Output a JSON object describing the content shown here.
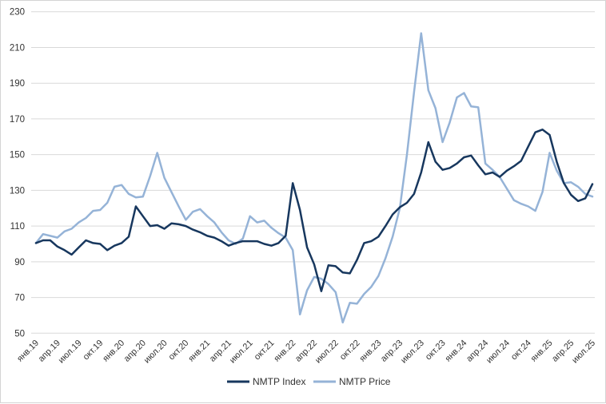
{
  "chart_data": {
    "type": "line",
    "title": "",
    "xlabel": "",
    "ylabel": "",
    "ylim": [
      50,
      230
    ],
    "y_ticks": [
      50,
      70,
      90,
      110,
      130,
      150,
      170,
      190,
      210,
      230
    ],
    "grid": "horizontal",
    "legend_position": "bottom-center",
    "x_label_rotation_deg": -45,
    "x_tick_labels_quarterly": [
      "янв.19",
      "апр.19",
      "июл.19",
      "окт.19",
      "янв.20",
      "апр.20",
      "июл.20",
      "окт.20",
      "янв.21",
      "апр.21",
      "июл.21",
      "окт.21",
      "янв.22",
      "апр.22",
      "июл.22",
      "окт.22",
      "янв.23",
      "апр.23",
      "июл.23",
      "окт.23",
      "янв.24",
      "апр.24",
      "июл.24",
      "окт.24",
      "янв.25",
      "апр.25",
      "июл.25"
    ],
    "x_label_every_n_points": 3,
    "x_months_start": "янв.19",
    "x_months_end": "июл.25",
    "series": [
      {
        "name": "NMTP Index",
        "color": "#17375E",
        "values": [
          100.5,
          102,
          102,
          98.5,
          96.5,
          94,
          98,
          102,
          100.5,
          100,
          96.5,
          99,
          100.5,
          104,
          121,
          115.5,
          110,
          110.5,
          108.5,
          111.5,
          111,
          110,
          108,
          106.5,
          104.5,
          103.5,
          101.5,
          99,
          100.5,
          101.5,
          101.5,
          101.5,
          100,
          99,
          100.5,
          104.5,
          134,
          119,
          98,
          88.5,
          73.5,
          88,
          87.5,
          84,
          83.5,
          91,
          100.5,
          101.5,
          104,
          110,
          116.5,
          120.5,
          123,
          128,
          140,
          157,
          146,
          141.5,
          142.5,
          145,
          148.5,
          149.5,
          144,
          139,
          140,
          137.5,
          141,
          143.5,
          146.5,
          154.5,
          162.5,
          164,
          161,
          146,
          134,
          127.5,
          124,
          125.5,
          133.5
        ]
      },
      {
        "name": "NMTP Price",
        "color": "#95B3D7",
        "values": [
          100.5,
          105.5,
          104.5,
          103.5,
          107,
          108.5,
          112,
          114.5,
          118.5,
          119,
          123,
          132,
          133,
          128,
          126,
          126.5,
          138,
          151,
          137,
          129,
          121,
          113.5,
          118,
          119.5,
          115.5,
          112,
          106.5,
          102,
          100,
          103,
          115.5,
          112,
          113,
          109,
          106,
          103.5,
          96.5,
          60.5,
          74,
          81.5,
          80.5,
          77.5,
          73,
          56,
          67,
          66.5,
          72,
          76,
          82,
          92,
          104,
          120,
          150,
          185,
          218,
          186,
          176,
          157,
          168,
          182,
          184.5,
          177,
          176.5,
          145,
          141.5,
          137.5,
          131,
          124.5,
          122.5,
          121,
          118.5,
          129,
          151,
          141,
          134,
          134.5,
          132,
          128,
          126.5
        ]
      }
    ]
  },
  "legend": {
    "items": [
      {
        "label": "NMTP Index",
        "color": "#17375E"
      },
      {
        "label": "NMTP Price",
        "color": "#95B3D7"
      }
    ]
  },
  "style": {
    "gridline_color": "#D9D9D9",
    "axis_line_color": "#D9D9D9",
    "tick_label_color": "#333333",
    "background_color": "#FFFFFF",
    "border_color": "#D4D4D4",
    "line_width": 2.5
  }
}
